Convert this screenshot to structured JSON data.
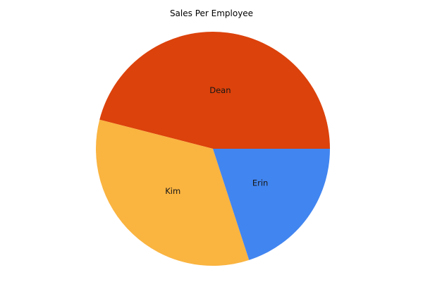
{
  "page": {
    "background": "#ffffff"
  },
  "chart_data": {
    "type": "pie",
    "title": "Sales Per Employee",
    "title_color": "#000000",
    "legend": "none",
    "background": "#ffffff",
    "start_angle_deg": 0,
    "direction": "counterclockwise",
    "label_radius_ratio": 0.5,
    "label_color": "#161616",
    "slices": [
      {
        "label": "Dean",
        "percent": 46,
        "color": "#DC420B"
      },
      {
        "label": "Kim",
        "percent": 34,
        "color": "#FAB440"
      },
      {
        "label": "Erin",
        "percent": 20,
        "color": "#4185F0"
      }
    ]
  }
}
